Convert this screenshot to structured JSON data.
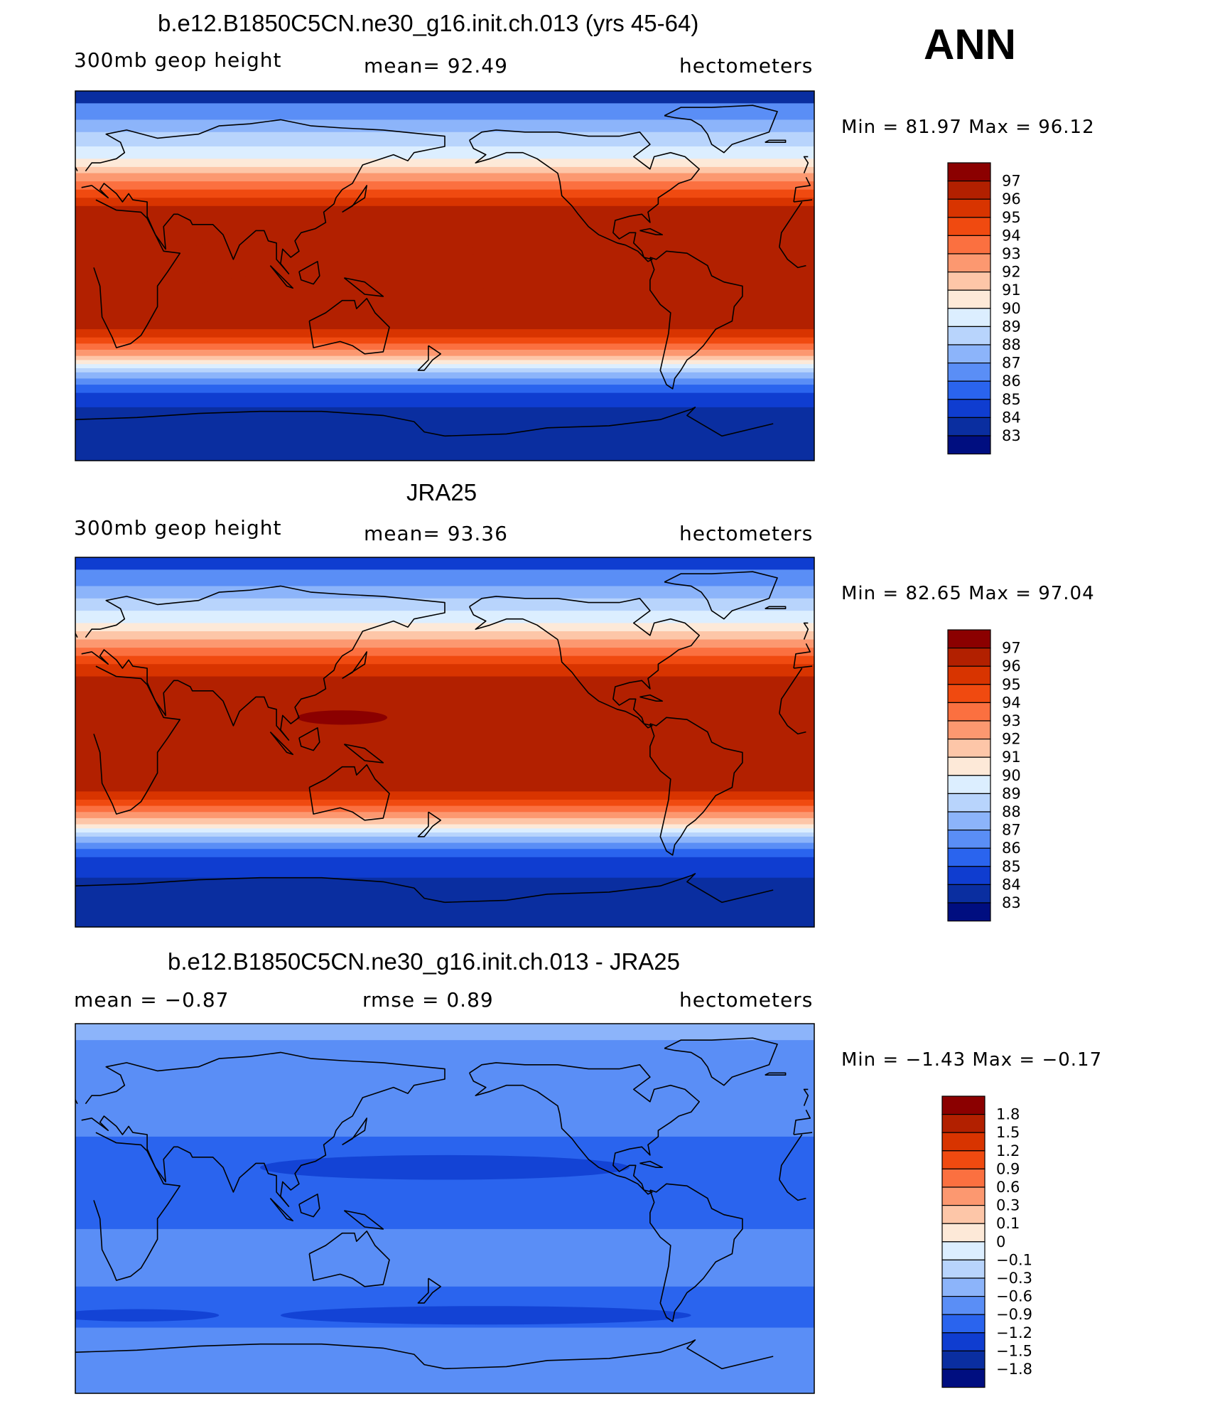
{
  "chart_data": [
    {
      "type": "heatmap",
      "title": "b.e12.B1850C5CN.ne30_g16.init.ch.013 (yrs 45-64)",
      "left_label": "300mb  geop  height",
      "center_label": "mean=   92.49",
      "right_label": "hectometers",
      "stats": "Min =   81.97  Max =   96.12",
      "x": [
        -180,
        180
      ],
      "y": [
        -90,
        90
      ],
      "colorbar": {
        "labels": [
          "97",
          "96",
          "95",
          "94",
          "93",
          "92",
          "91",
          "90",
          "89",
          "88",
          "87",
          "86",
          "85",
          "84",
          "83"
        ],
        "colors": [
          "#8b0000",
          "#b22000",
          "#d83400",
          "#f04a10",
          "#fb7040",
          "#fc9870",
          "#fdc6a8",
          "#fde9d8",
          "#dceeff",
          "#b8d4fc",
          "#8cb4fa",
          "#5a8ef6",
          "#2a64ee",
          "#0f3dd0",
          "#0a2ea0",
          "#000e80"
        ]
      },
      "field_bands": [
        {
          "lat_from": 90,
          "lat_to": 84,
          "value": 83
        },
        {
          "lat_from": 84,
          "lat_to": 76,
          "value": 86
        },
        {
          "lat_from": 76,
          "lat_to": 70,
          "value": 87
        },
        {
          "lat_from": 70,
          "lat_to": 63,
          "value": 88
        },
        {
          "lat_from": 63,
          "lat_to": 57,
          "value": 89
        },
        {
          "lat_from": 57,
          "lat_to": 53,
          "value": 90
        },
        {
          "lat_from": 53,
          "lat_to": 50,
          "value": 91
        },
        {
          "lat_from": 50,
          "lat_to": 46,
          "value": 92
        },
        {
          "lat_from": 46,
          "lat_to": 42,
          "value": 93
        },
        {
          "lat_from": 42,
          "lat_to": 38,
          "value": 94
        },
        {
          "lat_from": 38,
          "lat_to": 34,
          "value": 95
        },
        {
          "lat_from": 34,
          "lat_to": -26,
          "value": 96
        },
        {
          "lat_from": -26,
          "lat_to": -30,
          "value": 95
        },
        {
          "lat_from": -30,
          "lat_to": -33,
          "value": 94
        },
        {
          "lat_from": -33,
          "lat_to": -36,
          "value": 93
        },
        {
          "lat_from": -36,
          "lat_to": -39,
          "value": 92
        },
        {
          "lat_from": -39,
          "lat_to": -41,
          "value": 91
        },
        {
          "lat_from": -41,
          "lat_to": -43,
          "value": 90
        },
        {
          "lat_from": -43,
          "lat_to": -45,
          "value": 89
        },
        {
          "lat_from": -45,
          "lat_to": -47,
          "value": 88
        },
        {
          "lat_from": -47,
          "lat_to": -50,
          "value": 87
        },
        {
          "lat_from": -50,
          "lat_to": -53,
          "value": 86
        },
        {
          "lat_from": -53,
          "lat_to": -57,
          "value": 85
        },
        {
          "lat_from": -57,
          "lat_to": -64,
          "value": 84
        },
        {
          "lat_from": -64,
          "lat_to": -90,
          "value": 83
        }
      ]
    },
    {
      "type": "heatmap",
      "title": "JRA25",
      "left_label": "300mb  geop  height",
      "center_label": "mean=   93.36",
      "right_label": "hectometers",
      "stats": "Min =   82.65  Max =   97.04",
      "x": [
        -180,
        180
      ],
      "y": [
        -90,
        90
      ],
      "colorbar": {
        "labels": [
          "97",
          "96",
          "95",
          "94",
          "93",
          "92",
          "91",
          "90",
          "89",
          "88",
          "87",
          "86",
          "85",
          "84",
          "83"
        ],
        "colors": [
          "#8b0000",
          "#b22000",
          "#d83400",
          "#f04a10",
          "#fb7040",
          "#fc9870",
          "#fdc6a8",
          "#fde9d8",
          "#dceeff",
          "#b8d4fc",
          "#8cb4fa",
          "#5a8ef6",
          "#2a64ee",
          "#0f3dd0",
          "#0a2ea0",
          "#000e80"
        ]
      },
      "field_bands": [
        {
          "lat_from": 90,
          "lat_to": 84,
          "value": 84
        },
        {
          "lat_from": 84,
          "lat_to": 76,
          "value": 86
        },
        {
          "lat_from": 76,
          "lat_to": 70,
          "value": 87
        },
        {
          "lat_from": 70,
          "lat_to": 64,
          "value": 88
        },
        {
          "lat_from": 64,
          "lat_to": 58,
          "value": 89
        },
        {
          "lat_from": 58,
          "lat_to": 54,
          "value": 90
        },
        {
          "lat_from": 54,
          "lat_to": 50,
          "value": 91
        },
        {
          "lat_from": 50,
          "lat_to": 46,
          "value": 92
        },
        {
          "lat_from": 46,
          "lat_to": 42,
          "value": 93
        },
        {
          "lat_from": 42,
          "lat_to": 38,
          "value": 94
        },
        {
          "lat_from": 38,
          "lat_to": 32,
          "value": 95
        },
        {
          "lat_from": 32,
          "lat_to": -24,
          "value": 96.5
        },
        {
          "lat_from": -24,
          "lat_to": -28,
          "value": 95
        },
        {
          "lat_from": -28,
          "lat_to": -31,
          "value": 94
        },
        {
          "lat_from": -31,
          "lat_to": -34,
          "value": 93
        },
        {
          "lat_from": -34,
          "lat_to": -37,
          "value": 92
        },
        {
          "lat_from": -37,
          "lat_to": -40,
          "value": 91
        },
        {
          "lat_from": -40,
          "lat_to": -42,
          "value": 90
        },
        {
          "lat_from": -42,
          "lat_to": -44,
          "value": 89
        },
        {
          "lat_from": -44,
          "lat_to": -46,
          "value": 88
        },
        {
          "lat_from": -46,
          "lat_to": -49,
          "value": 87
        },
        {
          "lat_from": -49,
          "lat_to": -52,
          "value": 86
        },
        {
          "lat_from": -52,
          "lat_to": -56,
          "value": 85
        },
        {
          "lat_from": -56,
          "lat_to": -66,
          "value": 84
        },
        {
          "lat_from": -66,
          "lat_to": -90,
          "value": 83
        }
      ]
    },
    {
      "type": "heatmap",
      "title": "b.e12.B1850C5CN.ne30_g16.init.ch.013 - JRA25",
      "left_label": "mean  =    −0.87",
      "center_label": "rmse  =     0.89",
      "right_label": "hectometers",
      "stats": "Min =   −1.43  Max =   −0.17",
      "x": [
        -180,
        180
      ],
      "y": [
        -90,
        90
      ],
      "colorbar": {
        "labels": [
          "1.8",
          "1.5",
          "1.2",
          "0.9",
          "0.6",
          "0.3",
          "0.1",
          "0",
          "−0.1",
          "−0.3",
          "−0.6",
          "−0.9",
          "−1.2",
          "−1.5",
          "−1.8"
        ],
        "colors": [
          "#8b0000",
          "#b22000",
          "#d83400",
          "#f04a10",
          "#fb7040",
          "#fc9870",
          "#fdc6a8",
          "#fde9d8",
          "#dceeff",
          "#b8d4fc",
          "#8cb4fa",
          "#5a8ef6",
          "#2a64ee",
          "#0f3dd0",
          "#0a2ea0",
          "#000e80"
        ]
      },
      "field_bands": [
        {
          "lat_from": 90,
          "lat_to": 82,
          "value": -0.5
        },
        {
          "lat_from": 82,
          "lat_to": 62,
          "value": -0.75
        },
        {
          "lat_from": 62,
          "lat_to": 35,
          "value": -0.9
        },
        {
          "lat_from": 35,
          "lat_to": -10,
          "value": -1.0
        },
        {
          "lat_from": -10,
          "lat_to": -38,
          "value": -0.9
        },
        {
          "lat_from": -38,
          "lat_to": -58,
          "value": -1.05
        },
        {
          "lat_from": -58,
          "lat_to": -68,
          "value": -0.85
        },
        {
          "lat_from": -68,
          "lat_to": -90,
          "value": -0.75
        }
      ]
    }
  ],
  "season_label": "ANN"
}
